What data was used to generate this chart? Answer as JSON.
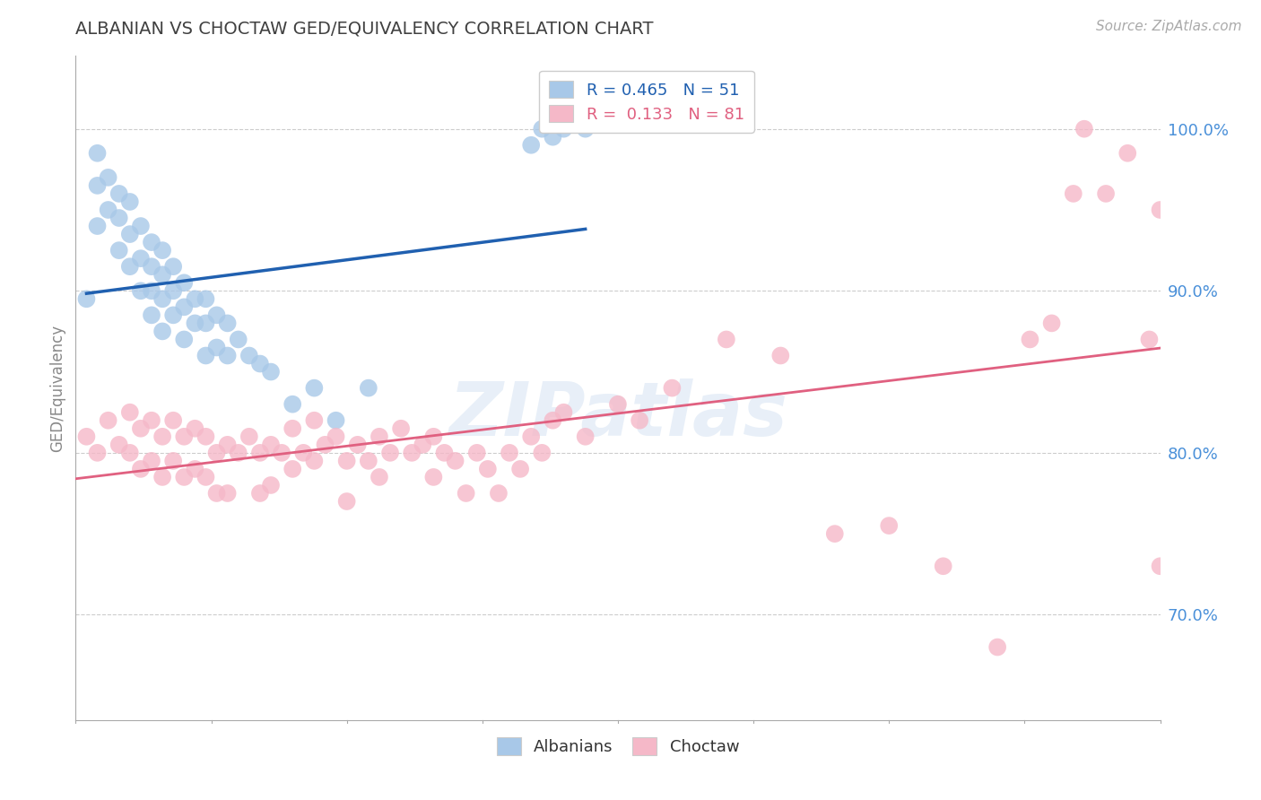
{
  "title": "ALBANIAN VS CHOCTAW GED/EQUIVALENCY CORRELATION CHART",
  "source": "Source: ZipAtlas.com",
  "ylabel": "GED/Equivalency",
  "xmin": 0.0,
  "xmax": 1.0,
  "ymin": 0.635,
  "ymax": 1.045,
  "watermark_text": "ZIPatlas",
  "legend_blue_r": "0.465",
  "legend_blue_n": "51",
  "legend_pink_r": "0.133",
  "legend_pink_n": "81",
  "blue_color": "#a8c8e8",
  "pink_color": "#f5b8c8",
  "blue_line_color": "#2060b0",
  "pink_line_color": "#e06080",
  "grid_color": "#cccccc",
  "title_color": "#404040",
  "label_color": "#4a90d9",
  "right_yticks": [
    0.7,
    0.8,
    0.9,
    1.0
  ],
  "right_yticklabels": [
    "70.0%",
    "80.0%",
    "90.0%",
    "100.0%"
  ],
  "blue_x": [
    0.01,
    0.02,
    0.02,
    0.02,
    0.03,
    0.03,
    0.04,
    0.04,
    0.04,
    0.05,
    0.05,
    0.05,
    0.06,
    0.06,
    0.06,
    0.07,
    0.07,
    0.07,
    0.07,
    0.08,
    0.08,
    0.08,
    0.08,
    0.09,
    0.09,
    0.09,
    0.1,
    0.1,
    0.1,
    0.11,
    0.11,
    0.12,
    0.12,
    0.12,
    0.13,
    0.13,
    0.14,
    0.14,
    0.15,
    0.16,
    0.17,
    0.18,
    0.2,
    0.22,
    0.24,
    0.27,
    0.42,
    0.43,
    0.44,
    0.45,
    0.47
  ],
  "blue_y": [
    0.895,
    0.985,
    0.965,
    0.94,
    0.97,
    0.95,
    0.96,
    0.945,
    0.925,
    0.955,
    0.935,
    0.915,
    0.94,
    0.92,
    0.9,
    0.93,
    0.915,
    0.9,
    0.885,
    0.925,
    0.91,
    0.895,
    0.875,
    0.915,
    0.9,
    0.885,
    0.905,
    0.89,
    0.87,
    0.895,
    0.88,
    0.895,
    0.88,
    0.86,
    0.885,
    0.865,
    0.88,
    0.86,
    0.87,
    0.86,
    0.855,
    0.85,
    0.83,
    0.84,
    0.82,
    0.84,
    0.99,
    1.0,
    0.995,
    1.0,
    1.0
  ],
  "pink_x": [
    0.01,
    0.02,
    0.03,
    0.04,
    0.05,
    0.05,
    0.06,
    0.06,
    0.07,
    0.07,
    0.08,
    0.08,
    0.09,
    0.09,
    0.1,
    0.1,
    0.11,
    0.11,
    0.12,
    0.12,
    0.13,
    0.13,
    0.14,
    0.14,
    0.15,
    0.16,
    0.17,
    0.17,
    0.18,
    0.18,
    0.19,
    0.2,
    0.2,
    0.21,
    0.22,
    0.22,
    0.23,
    0.24,
    0.25,
    0.25,
    0.26,
    0.27,
    0.28,
    0.28,
    0.29,
    0.3,
    0.31,
    0.32,
    0.33,
    0.33,
    0.34,
    0.35,
    0.36,
    0.37,
    0.38,
    0.39,
    0.4,
    0.41,
    0.42,
    0.43,
    0.44,
    0.45,
    0.47,
    0.5,
    0.52,
    0.55,
    0.6,
    0.65,
    0.7,
    0.75,
    0.8,
    0.85,
    0.88,
    0.9,
    0.92,
    0.93,
    0.95,
    0.97,
    0.99,
    1.0,
    1.0
  ],
  "pink_y": [
    0.81,
    0.8,
    0.82,
    0.805,
    0.825,
    0.8,
    0.815,
    0.79,
    0.82,
    0.795,
    0.81,
    0.785,
    0.82,
    0.795,
    0.81,
    0.785,
    0.815,
    0.79,
    0.81,
    0.785,
    0.8,
    0.775,
    0.805,
    0.775,
    0.8,
    0.81,
    0.8,
    0.775,
    0.805,
    0.78,
    0.8,
    0.815,
    0.79,
    0.8,
    0.795,
    0.82,
    0.805,
    0.81,
    0.795,
    0.77,
    0.805,
    0.795,
    0.81,
    0.785,
    0.8,
    0.815,
    0.8,
    0.805,
    0.81,
    0.785,
    0.8,
    0.795,
    0.775,
    0.8,
    0.79,
    0.775,
    0.8,
    0.79,
    0.81,
    0.8,
    0.82,
    0.825,
    0.81,
    0.83,
    0.82,
    0.84,
    0.87,
    0.86,
    0.75,
    0.755,
    0.73,
    0.68,
    0.87,
    0.88,
    0.96,
    1.0,
    0.96,
    0.985,
    0.87,
    0.95,
    0.73
  ]
}
